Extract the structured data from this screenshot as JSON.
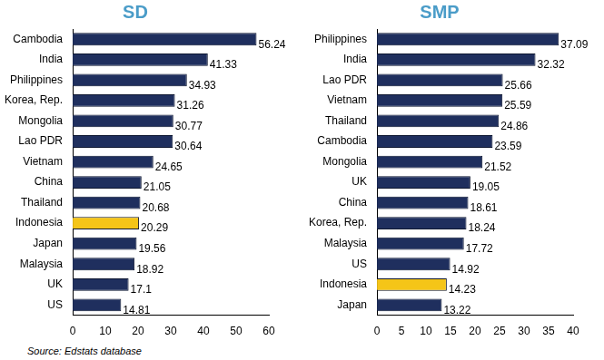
{
  "chart_data": [
    {
      "type": "bar",
      "title": "SD",
      "orientation": "horizontal",
      "categories": [
        "Cambodia",
        "India",
        "Philippines",
        "Korea, Rep.",
        "Mongolia",
        "Lao PDR",
        "Vietnam",
        "China",
        "Thailand",
        "Indonesia",
        "Japan",
        "Malaysia",
        "UK",
        "US"
      ],
      "values": [
        56.24,
        41.33,
        34.93,
        31.26,
        30.77,
        30.64,
        24.65,
        21.05,
        20.68,
        20.29,
        19.56,
        18.92,
        17.1,
        14.81
      ],
      "colors": [
        "#1f2f5e",
        "#1f2f5e",
        "#1f2f5e",
        "#1f2f5e",
        "#1f2f5e",
        "#1f2f5e",
        "#1f2f5e",
        "#1f2f5e",
        "#1f2f5e",
        "#f5c518",
        "#1f2f5e",
        "#1f2f5e",
        "#1f2f5e",
        "#1f2f5e"
      ],
      "xlim": [
        0,
        60
      ],
      "xticks": [
        0,
        10,
        20,
        30,
        40,
        50,
        60
      ],
      "grid": false,
      "data_labels": true
    },
    {
      "type": "bar",
      "title": "SMP",
      "orientation": "horizontal",
      "categories": [
        "Philippines",
        "India",
        "Lao PDR",
        "Vietnam",
        "Thailand",
        "Cambodia",
        "Mongolia",
        "UK",
        "China",
        "Korea, Rep.",
        "Malaysia",
        "US",
        "Indonesia",
        "Japan"
      ],
      "values": [
        37.09,
        32.32,
        25.66,
        25.59,
        24.86,
        23.59,
        21.52,
        19.05,
        18.61,
        18.24,
        17.72,
        14.92,
        14.23,
        13.22
      ],
      "colors": [
        "#1f2f5e",
        "#1f2f5e",
        "#1f2f5e",
        "#1f2f5e",
        "#1f2f5e",
        "#1f2f5e",
        "#1f2f5e",
        "#1f2f5e",
        "#1f2f5e",
        "#1f2f5e",
        "#1f2f5e",
        "#1f2f5e",
        "#f5c518",
        "#1f2f5e"
      ],
      "xlim": [
        0,
        40
      ],
      "xticks": [
        0,
        5,
        10,
        15,
        20,
        25,
        30,
        35,
        40
      ],
      "grid": false,
      "data_labels": true
    }
  ],
  "source": "Source: Edstats database"
}
